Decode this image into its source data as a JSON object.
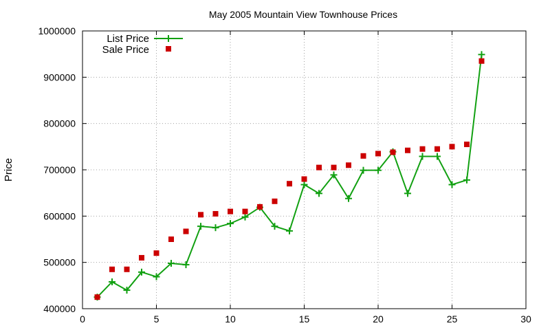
{
  "chart_data": {
    "type": "line",
    "title": "May 2005 Mountain View Townhouse Prices",
    "xlabel": "",
    "ylabel": "Price",
    "xlim": [
      0,
      30
    ],
    "ylim": [
      400000,
      1000000
    ],
    "x_ticks": [
      "0",
      "5",
      "10",
      "15",
      "20",
      "25",
      "30"
    ],
    "y_ticks": [
      "400000",
      "500000",
      "600000",
      "700000",
      "800000",
      "900000",
      "1000000"
    ],
    "grid": true,
    "legend_position": "top-left",
    "series": [
      {
        "name": "List Price",
        "style": "line-with-plus-markers",
        "color": "#11a011",
        "x": [
          1,
          2,
          3,
          4,
          5,
          6,
          7,
          8,
          9,
          10,
          11,
          12,
          13,
          14,
          15,
          16,
          17,
          18,
          19,
          20,
          21,
          22,
          23,
          24,
          25,
          26,
          27
        ],
        "values": [
          425000,
          458000,
          440000,
          479000,
          469000,
          498000,
          495000,
          578000,
          575000,
          584000,
          598000,
          619000,
          578000,
          568000,
          668000,
          649000,
          689000,
          638000,
          699000,
          699000,
          739000,
          649000,
          729000,
          729000,
          668000,
          678000,
          949000
        ]
      },
      {
        "name": "Sale Price",
        "style": "square-markers",
        "color": "#cc0000",
        "x": [
          1,
          2,
          3,
          4,
          5,
          6,
          7,
          8,
          9,
          10,
          11,
          12,
          13,
          14,
          15,
          16,
          17,
          18,
          19,
          20,
          21,
          22,
          23,
          24,
          25,
          26,
          27
        ],
        "values": [
          425000,
          485000,
          485000,
          510000,
          520000,
          550000,
          567000,
          603000,
          605000,
          610000,
          610000,
          620000,
          632000,
          670000,
          680000,
          705000,
          705000,
          710000,
          730000,
          735000,
          738000,
          742000,
          745000,
          745000,
          750000,
          755000,
          935000
        ]
      }
    ]
  }
}
